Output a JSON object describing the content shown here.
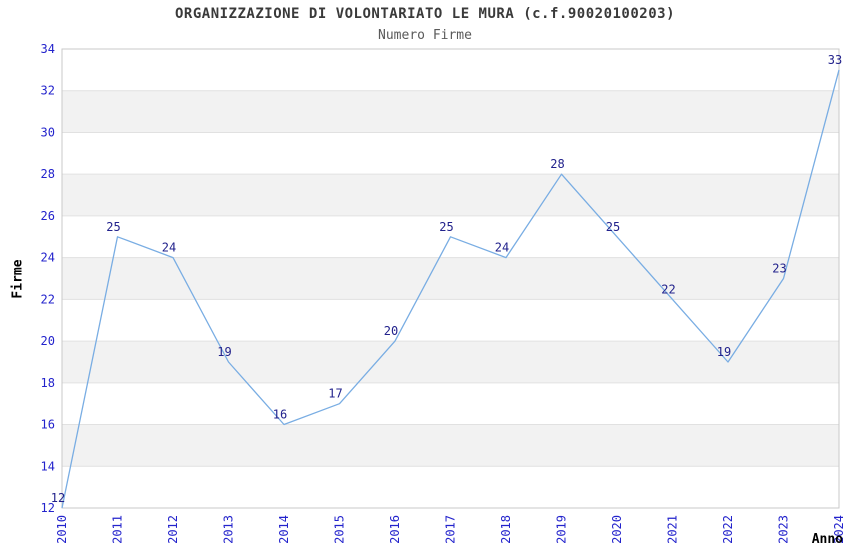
{
  "chart_data": {
    "type": "line",
    "title": "ORGANIZZAZIONE DI VOLONTARIATO LE MURA (c.f.90020100203)",
    "subtitle": "Numero Firme",
    "xlabel": "Anno",
    "ylabel": "Firme",
    "x": [
      "2010",
      "2011",
      "2012",
      "2013",
      "2014",
      "2015",
      "2016",
      "2017",
      "2018",
      "2019",
      "2020",
      "2021",
      "2022",
      "2023",
      "2024"
    ],
    "values": [
      12,
      25,
      24,
      19,
      16,
      17,
      20,
      25,
      24,
      28,
      25,
      22,
      19,
      23,
      33
    ],
    "ylim": [
      12,
      34
    ],
    "ytick_step": 2,
    "yticks": [
      12,
      14,
      16,
      18,
      20,
      22,
      24,
      26,
      28,
      30,
      32,
      34
    ],
    "grid": true,
    "bands": "alternating-horizontal",
    "legend_position": "none",
    "point_labels_visible": true,
    "colors": {
      "line": "#79ade3",
      "point_label": "#22228c",
      "tick_label": "#2323cc",
      "band": "#f2f2f2",
      "gridline": "#e1e1e1",
      "border": "#c9c9c9",
      "title": "#3a3a3a",
      "subtitle": "#5a5a5a",
      "axis_label": "#000000",
      "background": "#ffffff"
    }
  }
}
